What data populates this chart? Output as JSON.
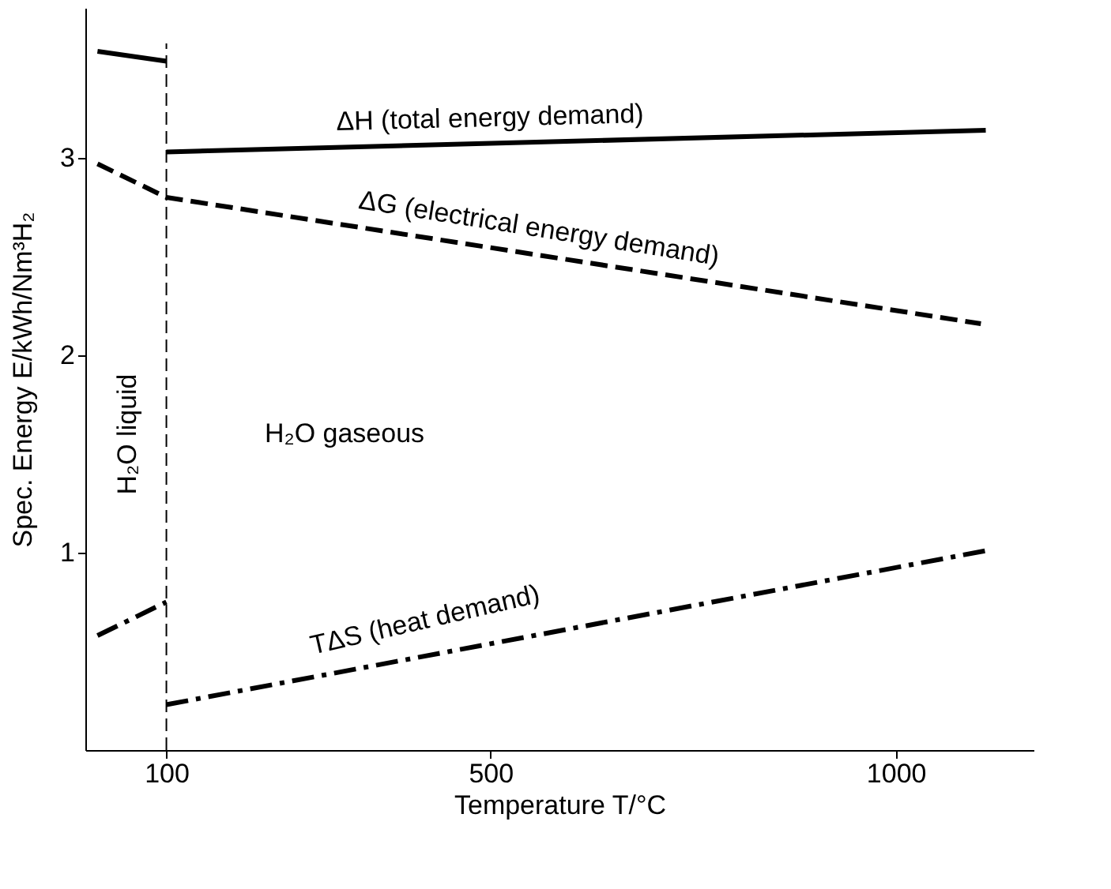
{
  "chart_data": {
    "type": "line",
    "xlabel": "Temperature T/°C",
    "ylabel": "Spec. Energy E/kWh/Nm³H₂",
    "xlim": [
      0,
      1170
    ],
    "xticks": [
      100,
      500,
      1000
    ],
    "ylim": [
      0,
      3.76
    ],
    "yticks": [
      1,
      2,
      3
    ],
    "grid": false,
    "marker": "none",
    "series": [
      {
        "color": "#000000",
        "line_style": "solid",
        "x": [
          15,
          100
        ],
        "values": [
          3.54,
          3.49
        ]
      },
      {
        "color": "#000000",
        "line_style": "solid",
        "x": [
          100,
          1111
        ],
        "values": [
          3.03,
          3.14
        ]
      },
      {
        "color": "#000000",
        "line_style": "dashed",
        "x": [
          15,
          100,
          1105
        ],
        "values": [
          2.97,
          2.8,
          2.16
        ]
      },
      {
        "color": "#000000",
        "line_style": "dashdot",
        "x": [
          15,
          100
        ],
        "values": [
          0.58,
          0.75
        ]
      },
      {
        "color": "#000000",
        "line_style": "dashdot",
        "x": [
          100,
          1111
        ],
        "values": [
          0.23,
          1.01
        ]
      }
    ],
    "ref_lines": [
      {
        "axis": "x",
        "value": 100,
        "color": "#000000",
        "line_style": "dashed"
      }
    ],
    "annotations": [
      "ΔH (total energy demand)",
      "ΔG (electrical energy demand)",
      "TΔS (heat demand)",
      "H₂O gaseous",
      "H₂O liquid"
    ]
  }
}
